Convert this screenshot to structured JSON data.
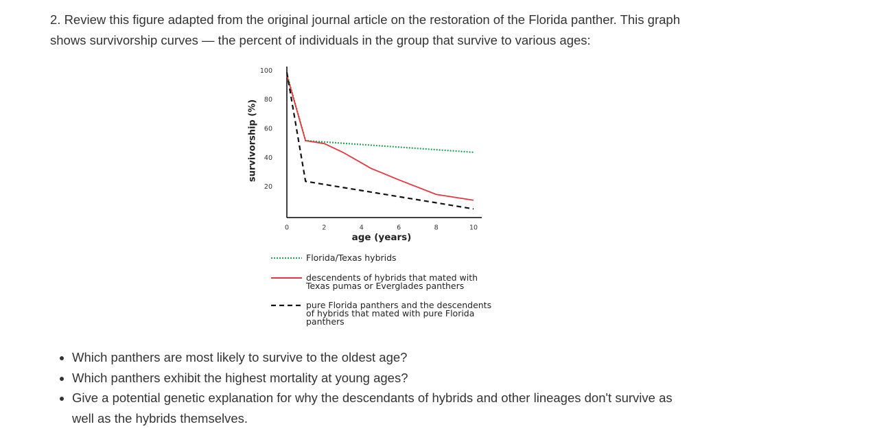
{
  "intro": "2. Review this figure adapted from the original journal article on the restoration of the Florida panther. This graph shows survivorship curves — the percent of individuals in the group that survive to various ages:",
  "chart_data": {
    "type": "line",
    "x_label": "age (years)",
    "y_label": "survivorship (%)",
    "xlim": [
      0,
      10
    ],
    "xticks": [
      0,
      2,
      4,
      6,
      8,
      10
    ],
    "ylim": [
      0,
      103
    ],
    "yticks": [
      20,
      40,
      60,
      80,
      100
    ],
    "grid": false,
    "series": [
      {
        "name": "Florida/Texas hybrids",
        "color": "#2e9e5b",
        "style": "dotted",
        "x": [
          0,
          1,
          10
        ],
        "values": [
          98,
          52,
          44
        ]
      },
      {
        "name": "descendents of hybrids that mated with Texas pumas or Everglades panthers",
        "color": "#e0393e",
        "style": "solid",
        "x": [
          0,
          1,
          2,
          3,
          4.5,
          6,
          8,
          10
        ],
        "values": [
          97,
          52,
          50,
          44,
          33,
          25,
          15,
          11
        ]
      },
      {
        "name": "pure Florida panthers and the descendents of hybrids that mated with pure Florida panthers",
        "color": "#111111",
        "style": "dashed",
        "x": [
          0,
          1,
          10
        ],
        "values": [
          99,
          24,
          5
        ]
      }
    ]
  },
  "questions": [
    "Which panthers are most likely to survive to the oldest age?",
    "Which panthers exhibit the highest mortality at young ages?",
    "Give a potential genetic explanation for why the descendants of hybrids and other lineages don't survive as well as the hybrids themselves."
  ]
}
